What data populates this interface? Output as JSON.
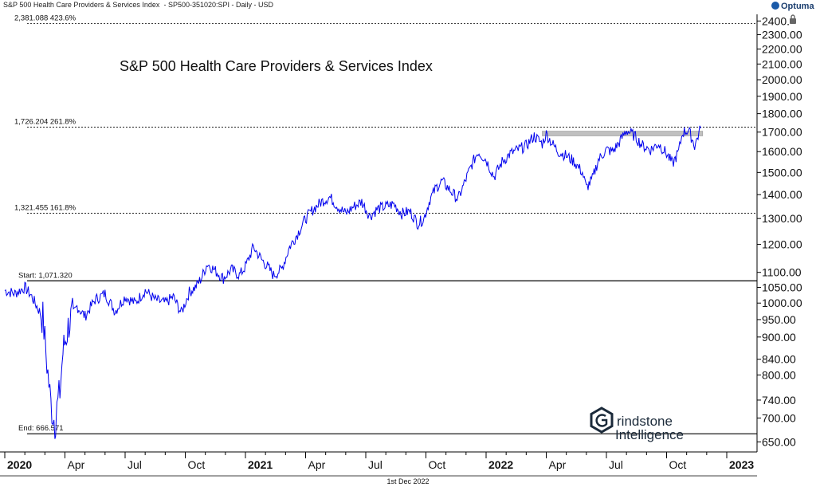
{
  "header": {
    "title_text": "S&P 500 Health Care Providers & Services Index",
    "symbol_text": "- SP500-351020:SPI - Daily - USD",
    "brand": "Optuma"
  },
  "footer": {
    "date": "1st Dec 2022"
  },
  "watermark": {
    "line1": "rindstone",
    "line2": "Intelligence"
  },
  "colors": {
    "series": "#0000ee",
    "level": "#000000",
    "resistance_band": "#c0c0c0"
  },
  "chart_data": {
    "type": "line",
    "title": "S&P 500 Health Care Providers & Services Index",
    "y_scale": "log",
    "ylim": [
      630,
      2450
    ],
    "y_ticks": [
      650,
      700,
      740,
      800,
      840,
      900,
      950,
      1000,
      1050,
      1100,
      1200,
      1300,
      1400,
      1500,
      1600,
      1700,
      1800,
      1900,
      2000,
      2100,
      2200,
      2300,
      2400
    ],
    "y_tick_labels": [
      "650.00",
      "700.00",
      "740.00",
      "800.00",
      "840.00",
      "900.00",
      "950.00",
      "1000.00",
      "1050.00",
      "1100.00",
      "1200.00",
      "1300.00",
      "1400.00",
      "1500.00",
      "1600.00",
      "1700.00",
      "1800.00",
      "1900.00",
      "2000.00",
      "2100.00",
      "2200.00",
      "2300.00",
      "2400."
    ],
    "x_range": [
      0,
      36
    ],
    "x_tick_labels": [
      {
        "label": "2020",
        "month": 0,
        "bold": true
      },
      {
        "label": "Apr",
        "month": 3,
        "bold": false
      },
      {
        "label": "Jul",
        "month": 6,
        "bold": false
      },
      {
        "label": "Oct",
        "month": 9,
        "bold": false
      },
      {
        "label": "2021",
        "month": 12,
        "bold": true
      },
      {
        "label": "Apr",
        "month": 15,
        "bold": false
      },
      {
        "label": "Jul",
        "month": 18,
        "bold": false
      },
      {
        "label": "Oct",
        "month": 21,
        "bold": false
      },
      {
        "label": "2022",
        "month": 24,
        "bold": true
      },
      {
        "label": "Apr",
        "month": 27,
        "bold": false
      },
      {
        "label": "Jul",
        "month": 30,
        "bold": false
      },
      {
        "label": "Oct",
        "month": 33,
        "bold": false
      },
      {
        "label": "2023",
        "month": 36,
        "bold": true
      }
    ],
    "levels": [
      {
        "value": 2381.088,
        "label": "2,381.088",
        "pct": "423.6%",
        "style": "dashed"
      },
      {
        "value": 1726.204,
        "label": "1,726.204",
        "pct": "261.8%",
        "style": "dashed"
      },
      {
        "value": 1321.455,
        "label": "1,321.455",
        "pct": "161.8%",
        "style": "dashed"
      },
      {
        "value": 1071.32,
        "label": "1,071.320",
        "pct": "Start:",
        "style": "solid"
      },
      {
        "value": 666.571,
        "label": "666.571",
        "pct": "End:",
        "style": "solid"
      }
    ],
    "resistance_band": {
      "from_month": 26.8,
      "to_month": 34.8,
      "low": 1680,
      "high": 1705
    },
    "series": [
      {
        "name": "S&P 500 Health Care Providers & Services Index",
        "x": [
          0,
          0.5,
          1.0,
          1.3,
          1.6,
          1.9,
          2.1,
          2.3,
          2.5,
          2.6,
          2.75,
          2.9,
          3.2,
          3.6,
          4.0,
          4.5,
          5.0,
          5.5,
          6.0,
          6.5,
          7.0,
          7.5,
          8.0,
          8.4,
          8.8,
          9.2,
          9.5,
          9.8,
          10.1,
          10.5,
          10.9,
          11.3,
          11.7,
          12.0,
          12.4,
          12.8,
          13.1,
          13.4,
          13.8,
          14.2,
          14.6,
          15.0,
          15.4,
          15.8,
          16.2,
          16.6,
          17.0,
          17.4,
          17.8,
          18.2,
          18.6,
          19.0,
          19.4,
          19.8,
          20.2,
          20.6,
          20.9,
          21.2,
          21.5,
          21.8,
          22.2,
          22.6,
          23.0,
          23.3,
          23.6,
          24.0,
          24.4,
          24.8,
          25.2,
          25.6,
          26.0,
          26.4,
          26.8,
          27.0,
          27.3,
          27.6,
          28.0,
          28.4,
          28.8,
          29.0,
          29.3,
          29.6,
          30.0,
          30.3,
          30.6,
          31.0,
          31.4,
          31.8,
          32.2,
          32.6,
          33.0,
          33.3,
          33.6,
          33.8,
          34.1,
          34.4,
          34.7
        ],
        "values": [
          1040,
          1030,
          1050,
          1025,
          990,
          955,
          830,
          730,
          690,
          720,
          760,
          860,
          940,
          990,
          960,
          1010,
          1030,
          975,
          1020,
          1000,
          1040,
          1010,
          1000,
          1020,
          970,
          1035,
          1050,
          1080,
          1130,
          1105,
          1080,
          1110,
          1090,
          1120,
          1190,
          1145,
          1120,
          1090,
          1110,
          1190,
          1240,
          1300,
          1340,
          1370,
          1390,
          1350,
          1320,
          1350,
          1370,
          1310,
          1340,
          1350,
          1360,
          1320,
          1330,
          1280,
          1300,
          1380,
          1430,
          1460,
          1420,
          1380,
          1470,
          1540,
          1600,
          1560,
          1480,
          1550,
          1590,
          1610,
          1630,
          1680,
          1640,
          1690,
          1640,
          1600,
          1580,
          1550,
          1500,
          1430,
          1470,
          1560,
          1610,
          1600,
          1640,
          1710,
          1680,
          1630,
          1610,
          1640,
          1590,
          1540,
          1600,
          1700,
          1710,
          1630,
          1720
        ]
      }
    ]
  }
}
